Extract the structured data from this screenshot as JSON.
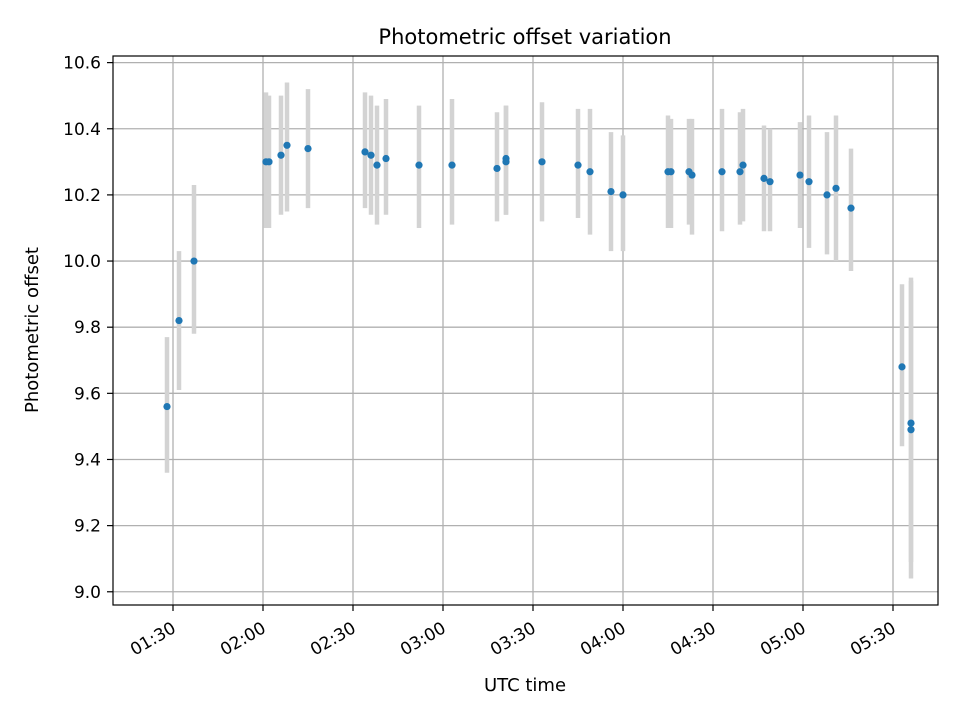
{
  "chart_data": {
    "type": "scatter",
    "title": "Photometric offset variation",
    "xlabel": "UTC time",
    "ylabel": "Photometric offset",
    "xlim": [
      "01:10",
      "05:45"
    ],
    "ylim": [
      8.96,
      10.62
    ],
    "x_ticks": [
      "01:30",
      "02:00",
      "02:30",
      "03:00",
      "03:30",
      "04:00",
      "04:30",
      "05:00",
      "05:30"
    ],
    "y_ticks": [
      "9.0",
      "9.2",
      "9.4",
      "9.6",
      "9.8",
      "10.0",
      "10.2",
      "10.4",
      "10.6"
    ],
    "grid": true,
    "marker_color": "#1f77b4",
    "errorbar_color": "#d3d3d3",
    "points": [
      {
        "time": "01:28",
        "y": 9.56,
        "low": 9.36,
        "high": 9.77
      },
      {
        "time": "01:32",
        "y": 9.82,
        "low": 9.61,
        "high": 10.03
      },
      {
        "time": "01:37",
        "y": 10.0,
        "low": 9.78,
        "high": 10.23
      },
      {
        "time": "02:01",
        "y": 10.3,
        "low": 10.1,
        "high": 10.51
      },
      {
        "time": "02:02",
        "y": 10.3,
        "low": 10.1,
        "high": 10.5
      },
      {
        "time": "02:06",
        "y": 10.32,
        "low": 10.14,
        "high": 10.5
      },
      {
        "time": "02:08",
        "y": 10.35,
        "low": 10.15,
        "high": 10.54
      },
      {
        "time": "02:15",
        "y": 10.34,
        "low": 10.16,
        "high": 10.52
      },
      {
        "time": "02:34",
        "y": 10.33,
        "low": 10.16,
        "high": 10.51
      },
      {
        "time": "02:36",
        "y": 10.32,
        "low": 10.14,
        "high": 10.5
      },
      {
        "time": "02:38",
        "y": 10.29,
        "low": 10.11,
        "high": 10.47
      },
      {
        "time": "02:41",
        "y": 10.31,
        "low": 10.14,
        "high": 10.49
      },
      {
        "time": "02:52",
        "y": 10.29,
        "low": 10.1,
        "high": 10.47
      },
      {
        "time": "03:03",
        "y": 10.29,
        "low": 10.11,
        "high": 10.49
      },
      {
        "time": "03:18",
        "y": 10.28,
        "low": 10.12,
        "high": 10.45
      },
      {
        "time": "03:21",
        "y": 10.31,
        "low": 10.14,
        "high": 10.47
      },
      {
        "time": "03:21",
        "y": 10.3,
        "low": 10.14,
        "high": 10.47
      },
      {
        "time": "03:33",
        "y": 10.3,
        "low": 10.12,
        "high": 10.48
      },
      {
        "time": "03:45",
        "y": 10.29,
        "low": 10.13,
        "high": 10.46
      },
      {
        "time": "03:49",
        "y": 10.27,
        "low": 10.08,
        "high": 10.46
      },
      {
        "time": "03:56",
        "y": 10.21,
        "low": 10.03,
        "high": 10.39
      },
      {
        "time": "04:00",
        "y": 10.2,
        "low": 10.03,
        "high": 10.38
      },
      {
        "time": "04:15",
        "y": 10.27,
        "low": 10.1,
        "high": 10.44
      },
      {
        "time": "04:16",
        "y": 10.27,
        "low": 10.1,
        "high": 10.43
      },
      {
        "time": "04:22",
        "y": 10.27,
        "low": 10.11,
        "high": 10.43
      },
      {
        "time": "04:23",
        "y": 10.26,
        "low": 10.08,
        "high": 10.43
      },
      {
        "time": "04:33",
        "y": 10.27,
        "low": 10.09,
        "high": 10.46
      },
      {
        "time": "04:39",
        "y": 10.27,
        "low": 10.11,
        "high": 10.45
      },
      {
        "time": "04:40",
        "y": 10.29,
        "low": 10.12,
        "high": 10.46
      },
      {
        "time": "04:47",
        "y": 10.25,
        "low": 10.09,
        "high": 10.41
      },
      {
        "time": "04:49",
        "y": 10.24,
        "low": 10.09,
        "high": 10.4
      },
      {
        "time": "04:59",
        "y": 10.26,
        "low": 10.1,
        "high": 10.42
      },
      {
        "time": "05:02",
        "y": 10.24,
        "low": 10.04,
        "high": 10.44
      },
      {
        "time": "05:08",
        "y": 10.2,
        "low": 10.02,
        "high": 10.39
      },
      {
        "time": "05:11",
        "y": 10.22,
        "low": 10.0,
        "high": 10.44
      },
      {
        "time": "05:16",
        "y": 10.16,
        "low": 9.97,
        "high": 10.34
      },
      {
        "time": "05:33",
        "y": 9.68,
        "low": 9.44,
        "high": 9.93
      },
      {
        "time": "05:36",
        "y": 9.49,
        "low": 9.04,
        "high": 9.95
      },
      {
        "time": "05:36",
        "y": 9.51,
        "low": 9.09,
        "high": 9.94
      }
    ]
  }
}
